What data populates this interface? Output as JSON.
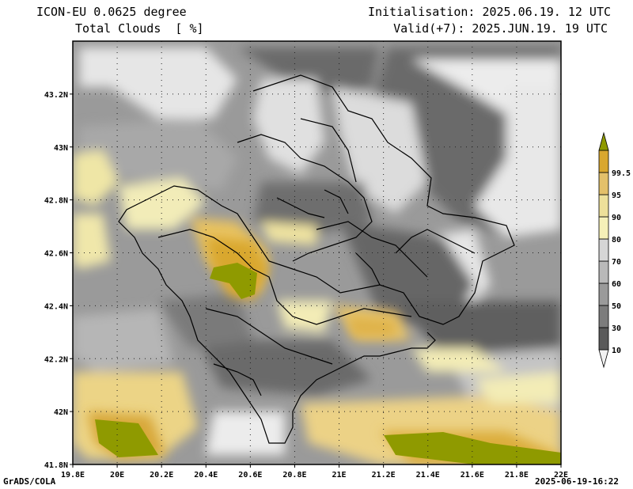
{
  "header": {
    "model": "ICON-EU 0.0625 degree",
    "variable": "Total Clouds  [ %]",
    "init": "Initialisation: 2025.06.19. 12 UTC",
    "valid": "Valid(+7): 2025.JUN.19. 19 UTC"
  },
  "footer": {
    "left": "GrADS/COLA",
    "right": "2025-06-19-16:22"
  },
  "axes": {
    "lat_labels": [
      "43.2N",
      "43N",
      "42.8N",
      "42.6N",
      "42.4N",
      "42.2N",
      "42N",
      "41.8N"
    ],
    "lat_values": [
      43.2,
      43.0,
      42.8,
      42.6,
      42.4,
      42.2,
      42.0,
      41.8
    ],
    "lon_labels": [
      "19.8E",
      "20E",
      "20.2E",
      "20.4E",
      "20.6E",
      "20.8E",
      "21E",
      "21.2E",
      "21.4E",
      "21.6E",
      "21.8E",
      "22E"
    ],
    "lon_values": [
      19.8,
      20.0,
      20.2,
      20.4,
      20.6,
      20.8,
      21.0,
      21.2,
      21.4,
      21.6,
      21.8,
      22.0
    ],
    "lat_range": [
      41.8,
      43.4
    ],
    "lon_range": [
      19.8,
      22.0
    ]
  },
  "colorbar": {
    "labels": [
      "10",
      "30",
      "50",
      "60",
      "70",
      "80",
      "90",
      "95",
      "99.5"
    ],
    "colors": [
      "#f2f2f2",
      "#5a5a5a",
      "#7c7c7c",
      "#9a9a9a",
      "#b9b9b9",
      "#d6d6d6",
      "#f5f0b8",
      "#ede09a",
      "#e3c06a",
      "#d9a72f",
      "#8f9a00"
    ]
  }
}
